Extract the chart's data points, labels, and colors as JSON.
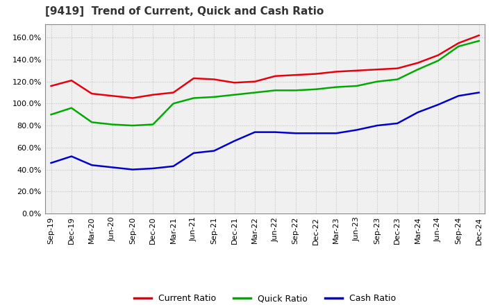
{
  "title": "[9419]  Trend of Current, Quick and Cash Ratio",
  "x_labels": [
    "Sep-19",
    "Dec-19",
    "Mar-20",
    "Jun-20",
    "Sep-20",
    "Dec-20",
    "Mar-21",
    "Jun-21",
    "Sep-21",
    "Dec-21",
    "Mar-22",
    "Jun-22",
    "Sep-22",
    "Dec-22",
    "Mar-23",
    "Jun-23",
    "Sep-23",
    "Dec-23",
    "Mar-24",
    "Jun-24",
    "Sep-24",
    "Dec-24"
  ],
  "current_ratio": [
    1.16,
    1.21,
    1.09,
    1.07,
    1.05,
    1.08,
    1.1,
    1.23,
    1.22,
    1.19,
    1.2,
    1.25,
    1.26,
    1.27,
    1.29,
    1.3,
    1.31,
    1.32,
    1.37,
    1.44,
    1.55,
    1.62
  ],
  "quick_ratio": [
    0.9,
    0.96,
    0.83,
    0.81,
    0.8,
    0.81,
    1.0,
    1.05,
    1.06,
    1.08,
    1.1,
    1.12,
    1.12,
    1.13,
    1.15,
    1.16,
    1.2,
    1.22,
    1.31,
    1.39,
    1.52,
    1.57
  ],
  "cash_ratio": [
    0.46,
    0.52,
    0.44,
    0.42,
    0.4,
    0.41,
    0.43,
    0.55,
    0.57,
    0.66,
    0.74,
    0.74,
    0.73,
    0.73,
    0.73,
    0.76,
    0.8,
    0.82,
    0.92,
    0.99,
    1.07,
    1.1
  ],
  "current_color": "#e8000d",
  "quick_color": "#00aa00",
  "cash_color": "#0000cc",
  "ylim": [
    0.0,
    1.72
  ],
  "yticks": [
    0.0,
    0.2,
    0.4,
    0.6,
    0.8,
    1.0,
    1.2,
    1.4,
    1.6
  ],
  "bg_color": "#ffffff",
  "plot_bg_color": "#f0f0f0",
  "grid_color": "#bbbbbb",
  "line_width": 1.8,
  "title_fontsize": 11,
  "tick_fontsize": 8,
  "legend_fontsize": 9
}
